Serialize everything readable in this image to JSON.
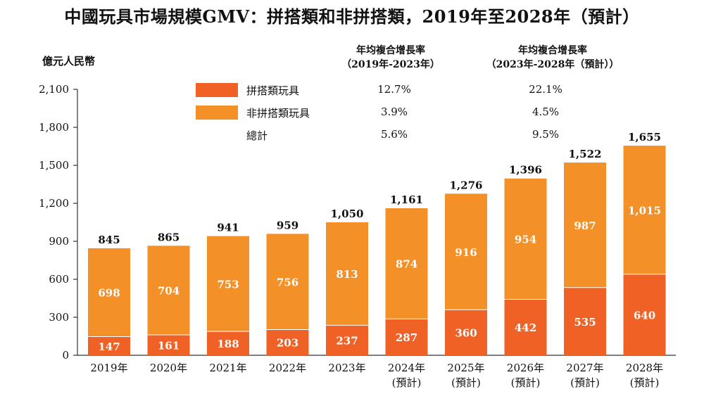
{
  "title": "中國玩具市場規模GMV：拼搭類和非拼搭類，2019年至2028年（預計）",
  "unit_label": "億元人民幣",
  "colors": {
    "construction": "#F06125",
    "non_construction": "#F39128",
    "axis": "#333333"
  },
  "cagr_headers": [
    {
      "line1": "年均複合增長率",
      "line2": "（2019年-2023年）"
    },
    {
      "line1": "年均複合增長率",
      "line2": "（2023年-2028年（預計））"
    }
  ],
  "legend": [
    {
      "label": "拼搭類玩具",
      "color_key": "construction",
      "cagr_2019_2023": "12.7%",
      "cagr_2023_2028": "22.1%"
    },
    {
      "label": "非拼搭類玩具",
      "color_key": "non_construction",
      "cagr_2019_2023": "3.9%",
      "cagr_2023_2028": "4.5%"
    },
    {
      "label": "總計",
      "color_key": null,
      "cagr_2019_2023": "5.6%",
      "cagr_2023_2028": "9.5%"
    }
  ],
  "chart_data": {
    "type": "bar",
    "stacked": true,
    "categories": [
      {
        "line1": "2019年",
        "line2": ""
      },
      {
        "line1": "2020年",
        "line2": ""
      },
      {
        "line1": "2021年",
        "line2": ""
      },
      {
        "line1": "2022年",
        "line2": ""
      },
      {
        "line1": "2023年",
        "line2": ""
      },
      {
        "line1": "2024年",
        "line2": "(預計)"
      },
      {
        "line1": "2025年",
        "line2": "(預計)"
      },
      {
        "line1": "2026年",
        "line2": "(預計)"
      },
      {
        "line1": "2027年",
        "line2": "(預計)"
      },
      {
        "line1": "2028年",
        "line2": "(預計)"
      }
    ],
    "series": [
      {
        "name": "拼搭類玩具",
        "values": [
          147,
          161,
          188,
          203,
          237,
          287,
          360,
          442,
          535,
          640
        ],
        "labels": [
          "147",
          "161",
          "188",
          "203",
          "237",
          "287",
          "360",
          "442",
          "535",
          "640"
        ]
      },
      {
        "name": "非拼搭類玩具",
        "values": [
          698,
          704,
          753,
          756,
          813,
          874,
          916,
          954,
          987,
          1015
        ],
        "labels": [
          "698",
          "704",
          "753",
          "756",
          "813",
          "874",
          "916",
          "954",
          "987",
          "1,015"
        ]
      }
    ],
    "totals": [
      845,
      865,
      941,
      959,
      1050,
      1161,
      1276,
      1396,
      1522,
      1655
    ],
    "total_labels": [
      "845",
      "865",
      "941",
      "959",
      "1,050",
      "1,161",
      "1,276",
      "1,396",
      "1,522",
      "1,655"
    ],
    "ylabel": "億元人民幣",
    "ylim": [
      0,
      2100
    ],
    "yticks": [
      0,
      300,
      600,
      900,
      1200,
      1500,
      1800,
      2100
    ],
    "ytick_labels": [
      "0",
      "300",
      "600",
      "900",
      "1,200",
      "1,500",
      "1,800",
      "2,100"
    ],
    "grid": false,
    "legend_position": "top-left"
  }
}
